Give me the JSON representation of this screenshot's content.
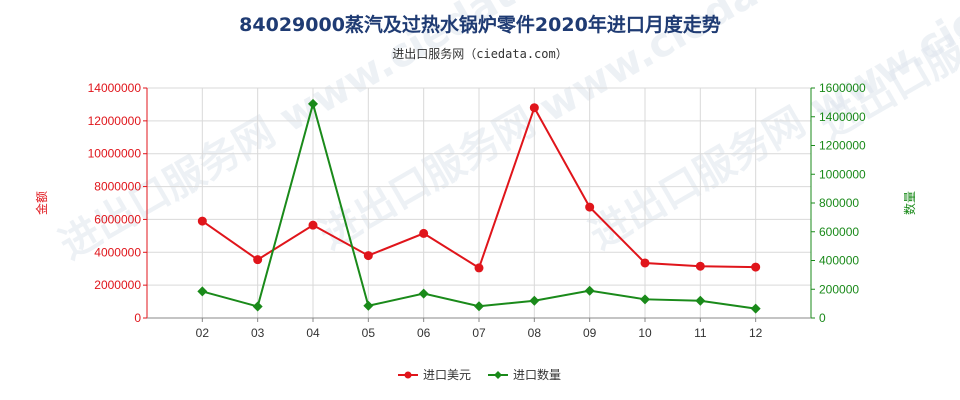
{
  "chart_data": {
    "type": "line",
    "title": "84029000蒸汽及过热水锅炉零件2020年进口月度走势",
    "subtitle": "进出口服务网（ciedata.com）",
    "categories": [
      "02",
      "03",
      "04",
      "05",
      "06",
      "07",
      "08",
      "09",
      "10",
      "11",
      "12"
    ],
    "y_left": {
      "label": "金额",
      "min": 0,
      "max": 14000000,
      "ticks": [
        "0",
        "2000000",
        "4000000",
        "6000000",
        "8000000",
        "10000000",
        "12000000",
        "14000000"
      ],
      "color": "#e0151b"
    },
    "y_right": {
      "label": "数量",
      "min": 0,
      "max": 1600000,
      "ticks": [
        "0",
        "200000",
        "400000",
        "600000",
        "800000",
        "1000000",
        "1200000",
        "1400000",
        "1600000"
      ],
      "color": "#1a8a1a"
    },
    "series": [
      {
        "name": "进口美元",
        "axis": "left",
        "color": "#e0151b",
        "marker": "circle",
        "values": [
          5900000,
          3550000,
          5650000,
          3800000,
          5150000,
          3050000,
          12800000,
          6750000,
          3350000,
          3150000,
          3100000
        ]
      },
      {
        "name": "进口数量",
        "axis": "right",
        "color": "#1a8a1a",
        "marker": "diamond",
        "values": [
          185000,
          80000,
          1490000,
          85000,
          170000,
          82000,
          120000,
          190000,
          130000,
          120000,
          65000
        ]
      }
    ],
    "grid": true,
    "legend_position": "bottom-center"
  },
  "watermark": "进出口服务网 www.ciedata.com"
}
